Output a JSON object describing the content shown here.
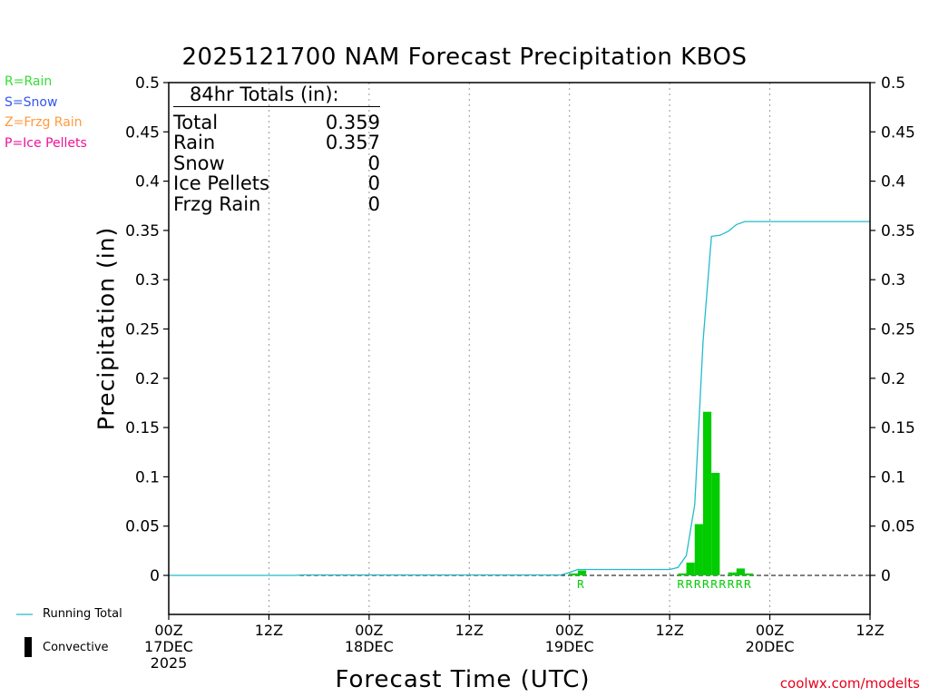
{
  "title": "2025121700 NAM Forecast Precipitation KBOS",
  "credit": "coolwx.com/modelts",
  "legend_types": [
    {
      "label": "R=Rain",
      "color": "#33dd33"
    },
    {
      "label": "S=Snow",
      "color": "#3355ee"
    },
    {
      "label": "Z=Frzg Rain",
      "color": "#ff9a3c"
    },
    {
      "label": "P=Ice Pellets",
      "color": "#ee1199"
    }
  ],
  "totals": {
    "header": "84hr Totals (in):",
    "rows": [
      {
        "label": "Total",
        "value": "0.359"
      },
      {
        "label": "Rain",
        "value": "0.357"
      },
      {
        "label": "Snow",
        "value": "0"
      },
      {
        "label": "Ice Pellets",
        "value": "0"
      },
      {
        "label": "Frzg Rain",
        "value": "0"
      }
    ]
  },
  "bottom_legend": {
    "running_total": "Running Total",
    "convective": "Convective"
  },
  "chart_data": {
    "type": "bar",
    "title": "2025121700 NAM Forecast Precipitation KBOS",
    "xlabel": "Forecast Time (UTC)",
    "ylabel": "Precipitation (in)",
    "x_unit": "forecast hour",
    "xlim": [
      0,
      84
    ],
    "ylim": [
      -0.04,
      0.5
    ],
    "y_ticks": [
      "0.5",
      "0.45",
      "0.4",
      "0.35",
      "0.3",
      "0.25",
      "0.2",
      "0.15",
      "0.1",
      "0.05",
      "0"
    ],
    "x_ticks": [
      {
        "hour": 0,
        "label": [
          "00Z",
          "17DEC",
          "2025"
        ]
      },
      {
        "hour": 12,
        "label": [
          "12Z"
        ]
      },
      {
        "hour": 24,
        "label": [
          "00Z",
          "18DEC"
        ]
      },
      {
        "hour": 36,
        "label": [
          "12Z"
        ]
      },
      {
        "hour": 48,
        "label": [
          "00Z",
          "19DEC"
        ]
      },
      {
        "hour": 60,
        "label": [
          "12Z"
        ]
      },
      {
        "hour": 72,
        "label": [
          "00Z",
          "20DEC"
        ]
      },
      {
        "hour": 84,
        "label": [
          "12Z"
        ]
      }
    ],
    "grid": "vertical dotted at 12-hour intervals",
    "bar_width_hours": 1,
    "bars": [
      {
        "hour": 48,
        "value": 0.002,
        "type": "R"
      },
      {
        "hour": 49,
        "value": 0.005,
        "type": "R"
      },
      {
        "hour": 61,
        "value": 0.002,
        "type": "R"
      },
      {
        "hour": 62,
        "value": 0.013,
        "type": "R"
      },
      {
        "hour": 63,
        "value": 0.052,
        "type": "R"
      },
      {
        "hour": 64,
        "value": 0.166,
        "type": "R"
      },
      {
        "hour": 65,
        "value": 0.104,
        "type": "R"
      },
      {
        "hour": 67,
        "value": 0.003,
        "type": "R"
      },
      {
        "hour": 68,
        "value": 0.007,
        "type": "R"
      },
      {
        "hour": 69,
        "value": 0.002,
        "type": "R"
      }
    ],
    "type_markers": [
      {
        "hour": 49,
        "label": "R"
      },
      {
        "hour": 61,
        "label": "R"
      },
      {
        "hour": 62,
        "label": "R"
      },
      {
        "hour": 63,
        "label": "R"
      },
      {
        "hour": 64,
        "label": "R"
      },
      {
        "hour": 65,
        "label": "R"
      },
      {
        "hour": 66,
        "label": "R"
      },
      {
        "hour": 67,
        "label": "R"
      },
      {
        "hour": 68,
        "label": "R"
      },
      {
        "hour": 69,
        "label": "R"
      }
    ],
    "running_total": {
      "name": "Running Total",
      "points": [
        [
          0,
          0
        ],
        [
          15,
          0
        ],
        [
          16,
          0.0005
        ],
        [
          47,
          0.0005
        ],
        [
          48,
          0.003
        ],
        [
          49,
          0.006
        ],
        [
          60,
          0.006
        ],
        [
          61,
          0.008
        ],
        [
          62,
          0.02
        ],
        [
          63,
          0.072
        ],
        [
          64,
          0.238
        ],
        [
          65,
          0.344
        ],
        [
          66,
          0.345
        ],
        [
          67,
          0.349
        ],
        [
          68,
          0.356
        ],
        [
          69,
          0.359
        ],
        [
          84,
          0.359
        ]
      ],
      "color": "#22bbcc"
    },
    "colors": {
      "rain": "#00cc00",
      "running_total": "#22bbcc"
    }
  }
}
